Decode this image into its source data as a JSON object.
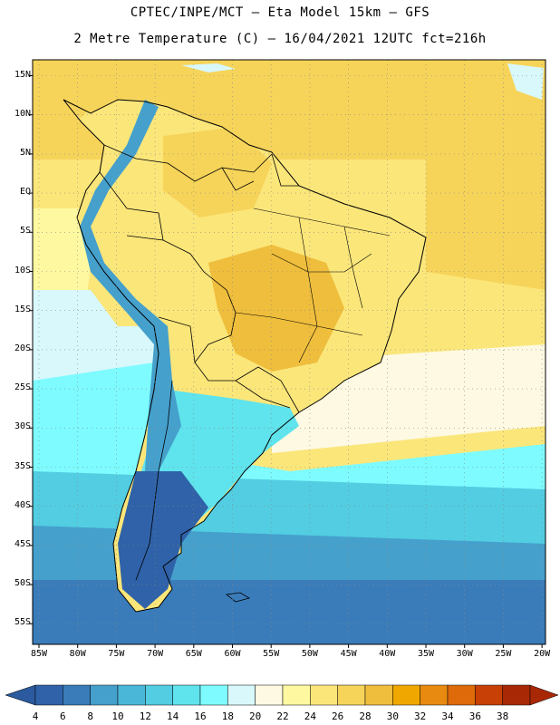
{
  "header": {
    "line1": "CPTEC/INPE/MCT –  Eta Model 15km – GFS",
    "line2": "2 Metre Temperature (C) – 16/04/2021 12UTC fct=216h"
  },
  "axes": {
    "lat_labels": [
      "15N",
      "10N",
      "5N",
      "EQ",
      "5S",
      "10S",
      "15S",
      "20S",
      "25S",
      "30S",
      "35S",
      "40S",
      "45S",
      "50S",
      "55S"
    ],
    "lon_labels": [
      "85W",
      "80W",
      "75W",
      "70W",
      "65W",
      "60W",
      "55W",
      "50W",
      "45W",
      "40W",
      "35W",
      "30W",
      "25W",
      "20W"
    ]
  },
  "colorbar": {
    "labels": [
      "4",
      "6",
      "8",
      "10",
      "12",
      "14",
      "16",
      "18",
      "20",
      "22",
      "24",
      "26",
      "28",
      "30",
      "32",
      "34",
      "36",
      "38"
    ],
    "colors": [
      "#2f62a8",
      "#3a7cba",
      "#45a0cc",
      "#4ab7d8",
      "#52cde2",
      "#5fe3ec",
      "#7dfbff",
      "#d8f8fb",
      "#fdf9e2",
      "#fef9a0",
      "#fbe67a",
      "#f6d45a",
      "#efbe3c",
      "#f0a800",
      "#e88a10",
      "#de6a0a",
      "#c84006",
      "#a82806"
    ],
    "low_end_color": "#2b5a9e",
    "high_end_color": "#a82806"
  },
  "colors": {
    "ocean_cold": "#2f62a8",
    "ocean_cool": "#52cde2",
    "ocean_mild": "#d8f8fb",
    "ocean_warm": "#fbe67a",
    "land_hot": "#efbe3c",
    "andes": "#45a0cc",
    "borders": "#000000"
  }
}
